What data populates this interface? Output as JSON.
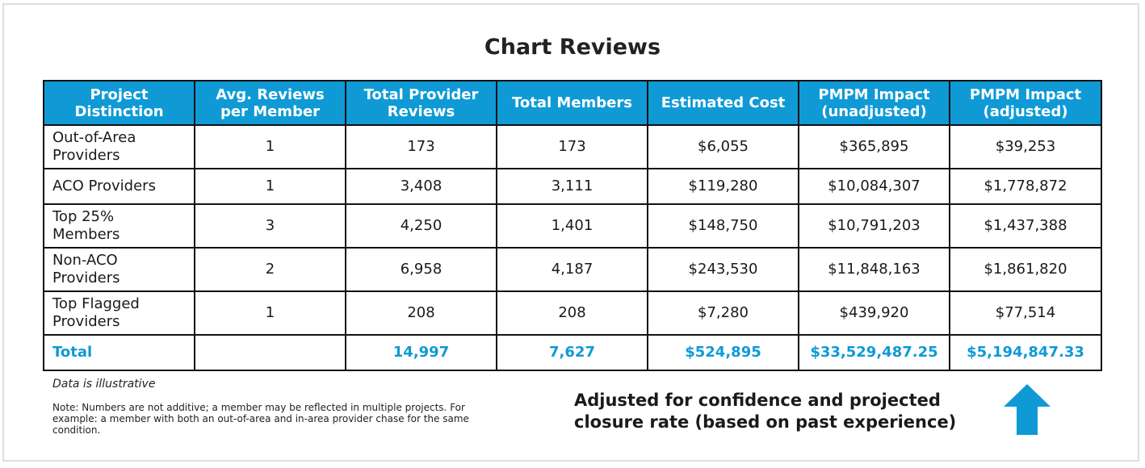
{
  "chart_data": {
    "type": "table",
    "title": "Chart Reviews",
    "columns": [
      "Project\nDistinction",
      "Avg. Reviews\nper Member",
      "Total Provider\nReviews",
      "Total Members",
      "Estimated Cost",
      "PMPM Impact\n(unadjusted)",
      "PMPM Impact\n(adjusted)"
    ],
    "rows": [
      {
        "label": "Out-of-Area\nProviders",
        "values": [
          "1",
          "173",
          "173",
          "$6,055",
          "$365,895",
          "$39,253"
        ]
      },
      {
        "label": "ACO Providers",
        "values": [
          "1",
          "3,408",
          "3,111",
          "$119,280",
          "$10,084,307",
          "$1,778,872"
        ]
      },
      {
        "label": "Top 25%\nMembers",
        "values": [
          "3",
          "4,250",
          "1,401",
          "$148,750",
          "$10,791,203",
          "$1,437,388"
        ]
      },
      {
        "label": "Non-ACO\nProviders",
        "values": [
          "2",
          "6,958",
          "4,187",
          "$243,530",
          "$11,848,163",
          "$1,861,820"
        ]
      },
      {
        "label": "Top Flagged\nProviders",
        "values": [
          "1",
          "208",
          "208",
          "$7,280",
          "$439,920",
          "$77,514"
        ]
      }
    ],
    "total": {
      "label": "Total",
      "values": [
        "",
        "14,997",
        "7,627",
        "$524,895",
        "$33,529,487.25",
        "$5,194,847.33"
      ]
    }
  },
  "notes": {
    "illustrative": "Data is illustrative",
    "additive": "Note: Numbers are not additive; a member may be reflected in multiple projects. For example: a member with both an out-of-area and in-area provider chase for the same condition."
  },
  "callout": {
    "text": "Adjusted for confidence and projected closure rate (based on past experience)",
    "icon": "arrow-up-icon"
  },
  "colors": {
    "header_bg": "#0f9ad6",
    "total_text": "#0f9ad6",
    "arrow": "#0f9ad6",
    "grid_border": "#111111",
    "frame_border": "#dedede"
  }
}
